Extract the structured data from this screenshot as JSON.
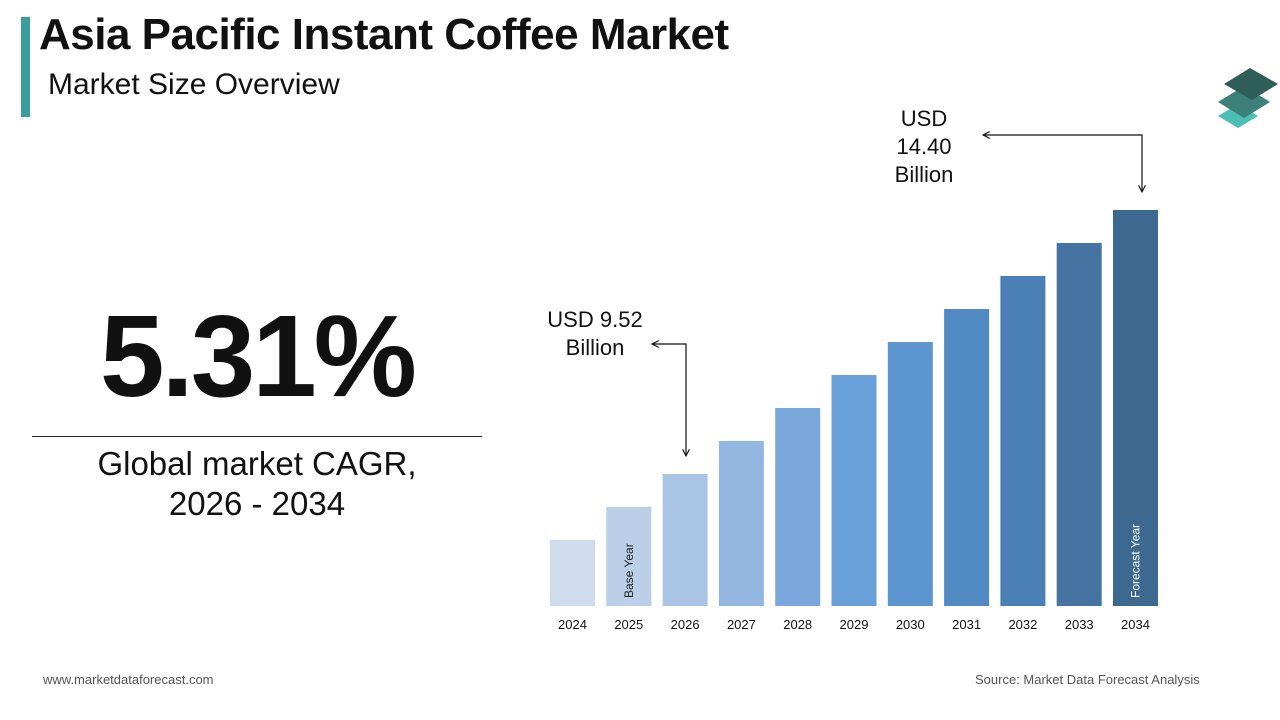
{
  "header": {
    "title": "Asia Pacific Instant Coffee Market",
    "subtitle": "Market Size Overview"
  },
  "cagr": {
    "value": "5.31%",
    "label_line1": "Global market CAGR,",
    "label_line2": "2026 - 2034"
  },
  "callouts": {
    "start_line1": "USD 9.52",
    "start_line2": "Billion",
    "end_line1": "USD",
    "end_line2": "14.40",
    "end_line3": "Billion"
  },
  "footer": {
    "website": "www.marketdataforecast.com",
    "source": "Source: Market Data Forecast Analysis"
  },
  "logo": {
    "icon": "stacked-layers-icon",
    "colors": [
      "#2f5d58",
      "#3d7f79",
      "#4bbfb5"
    ]
  },
  "chart_data": {
    "type": "bar",
    "categories": [
      "2024",
      "2025",
      "2026",
      "2027",
      "2028",
      "2029",
      "2030",
      "2031",
      "2032",
      "2033",
      "2034"
    ],
    "values": [
      2,
      3,
      4,
      5,
      6,
      7,
      8,
      9,
      10,
      11,
      12
    ],
    "value_note": "relative bar heights; only 2026 (USD 9.52 Billion) and 2034 (USD 14.40 Billion) are labeled",
    "bar_labels": {
      "2025": "Base Year",
      "2034": "Forecast Year"
    },
    "colors": [
      "#cfdcee",
      "#bccfe8",
      "#a9c4e4",
      "#93b7e0",
      "#7aa8dc",
      "#6aa0d9",
      "#5c95cf",
      "#528ac3",
      "#4a80b6",
      "#4574a3",
      "#3d6890"
    ]
  }
}
